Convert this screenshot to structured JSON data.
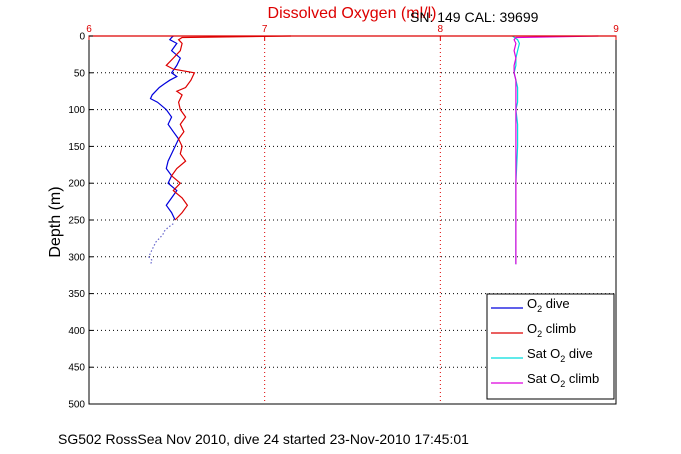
{
  "chart_data": {
    "type": "line",
    "title": "Dissolved Oxygen (ml/l)",
    "serial_info": "SN: 149  CAL: 39699",
    "xlabel": "",
    "ylabel": "Depth (m)",
    "x_range": [
      6,
      9
    ],
    "x_ticks": [
      "6",
      "7",
      "8",
      "9"
    ],
    "y_range": [
      0,
      500
    ],
    "y_ticks": [
      "0",
      "50",
      "100",
      "150",
      "200",
      "250",
      "300",
      "350",
      "400",
      "450",
      "500"
    ],
    "grid": "dotted",
    "legend_position": "bottom-right",
    "caption": "SG502 RossSea Nov 2010, dive 24 started 23-Nov-2010 17:45:01",
    "colors": {
      "title": "#dd0000",
      "x_axis": "#dd0000",
      "o2_dive": "#0000dd",
      "o2_climb": "#dd0000",
      "sat_dive": "#00dddd",
      "sat_climb": "#dd00dd"
    },
    "series": [
      {
        "name": "O2 dive",
        "legend_main": "O",
        "legend_sub": "2",
        "legend_tail": " dive",
        "color": "#0000dd",
        "points": [
          [
            6.48,
            0
          ],
          [
            6.47,
            2
          ],
          [
            6.46,
            5
          ],
          [
            6.5,
            10
          ],
          [
            6.47,
            20
          ],
          [
            6.52,
            30
          ],
          [
            6.5,
            40
          ],
          [
            6.47,
            50
          ],
          [
            6.5,
            55
          ],
          [
            6.46,
            60
          ],
          [
            6.43,
            65
          ],
          [
            6.4,
            70
          ],
          [
            6.36,
            80
          ],
          [
            6.35,
            85
          ],
          [
            6.39,
            90
          ],
          [
            6.44,
            100
          ],
          [
            6.47,
            110
          ],
          [
            6.45,
            120
          ],
          [
            6.48,
            130
          ],
          [
            6.51,
            140
          ],
          [
            6.49,
            150
          ],
          [
            6.47,
            160
          ],
          [
            6.45,
            170
          ],
          [
            6.44,
            180
          ],
          [
            6.47,
            190
          ],
          [
            6.45,
            200
          ],
          [
            6.5,
            210
          ],
          [
            6.47,
            220
          ],
          [
            6.44,
            230
          ],
          [
            6.47,
            240
          ],
          [
            6.49,
            250
          ]
        ]
      },
      {
        "name": "O2 climb",
        "legend_main": "O",
        "legend_sub": "2",
        "legend_tail": " climb",
        "color": "#dd0000",
        "points": [
          [
            7.15,
            0
          ],
          [
            6.53,
            2
          ],
          [
            6.51,
            5
          ],
          [
            6.53,
            10
          ],
          [
            6.52,
            20
          ],
          [
            6.48,
            30
          ],
          [
            6.44,
            40
          ],
          [
            6.48,
            45
          ],
          [
            6.6,
            50
          ],
          [
            6.58,
            60
          ],
          [
            6.55,
            70
          ],
          [
            6.5,
            75
          ],
          [
            6.53,
            80
          ],
          [
            6.51,
            90
          ],
          [
            6.52,
            100
          ],
          [
            6.55,
            110
          ],
          [
            6.52,
            120
          ],
          [
            6.54,
            130
          ],
          [
            6.51,
            140
          ],
          [
            6.53,
            150
          ],
          [
            6.52,
            160
          ],
          [
            6.55,
            170
          ],
          [
            6.5,
            180
          ],
          [
            6.47,
            190
          ],
          [
            6.52,
            200
          ],
          [
            6.48,
            210
          ],
          [
            6.53,
            220
          ],
          [
            6.56,
            230
          ],
          [
            6.53,
            240
          ],
          [
            6.49,
            250
          ]
        ]
      },
      {
        "name": "O2 sparse tail",
        "legend": false,
        "color": "#6666cc",
        "points": [
          [
            6.48,
            255
          ],
          [
            6.45,
            260
          ],
          [
            6.43,
            265
          ],
          [
            6.42,
            270
          ],
          [
            6.4,
            275
          ],
          [
            6.38,
            280
          ],
          [
            6.37,
            285
          ],
          [
            6.36,
            290
          ],
          [
            6.35,
            295
          ],
          [
            6.34,
            300
          ],
          [
            6.36,
            305
          ],
          [
            6.35,
            310
          ]
        ]
      },
      {
        "name": "Sat O2 dive",
        "legend_main": "Sat O",
        "legend_sub": "2",
        "legend_tail": " dive",
        "color": "#00dddd",
        "points": [
          [
            8.41,
            0
          ],
          [
            8.44,
            5
          ],
          [
            8.45,
            10
          ],
          [
            8.44,
            20
          ],
          [
            8.43,
            30
          ],
          [
            8.43,
            40
          ],
          [
            8.42,
            50
          ],
          [
            8.43,
            60
          ],
          [
            8.44,
            70
          ],
          [
            8.44,
            80
          ],
          [
            8.44,
            90
          ],
          [
            8.43,
            100
          ],
          [
            8.44,
            120
          ],
          [
            8.44,
            150
          ],
          [
            8.43,
            200
          ],
          [
            8.43,
            250
          ],
          [
            8.43,
            300
          ],
          [
            8.43,
            310
          ]
        ]
      },
      {
        "name": "Sat O2 climb",
        "legend_main": "Sat O",
        "legend_sub": "2",
        "legend_tail": " climb",
        "color": "#dd00dd",
        "points": [
          [
            8.9,
            0
          ],
          [
            8.43,
            2
          ],
          [
            8.42,
            5
          ],
          [
            8.43,
            10
          ],
          [
            8.42,
            20
          ],
          [
            8.43,
            30
          ],
          [
            8.42,
            40
          ],
          [
            8.42,
            50
          ],
          [
            8.43,
            60
          ],
          [
            8.43,
            70
          ],
          [
            8.43,
            80
          ],
          [
            8.43,
            100
          ],
          [
            8.43,
            120
          ],
          [
            8.43,
            150
          ],
          [
            8.43,
            200
          ],
          [
            8.43,
            250
          ],
          [
            8.43,
            300
          ],
          [
            8.43,
            310
          ]
        ]
      }
    ]
  }
}
